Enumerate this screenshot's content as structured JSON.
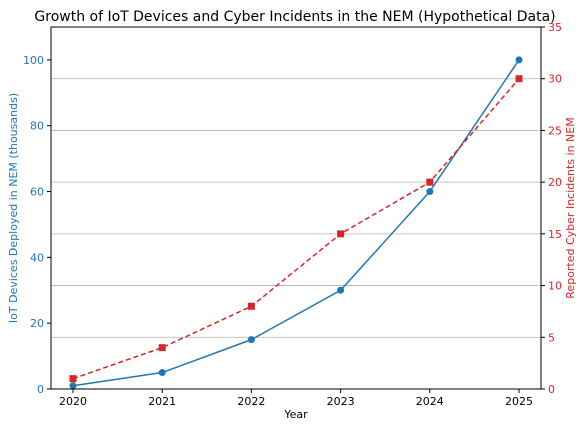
{
  "chart_data": {
    "type": "line",
    "title": "Growth of IoT Devices and Cyber Incidents in the NEM (Hypothetical Data)",
    "xlabel": "Year",
    "ylabel_left": "IoT Devices Deployed in NEM (thousands)",
    "ylabel_right": "Reported Cyber Incidents in NEM",
    "x": [
      "2020",
      "2021",
      "2022",
      "2023",
      "2024",
      "2025"
    ],
    "ylim_left": [
      0,
      110
    ],
    "ylim_right": [
      0,
      35
    ],
    "yticks_left": [
      "0",
      "20",
      "40",
      "60",
      "80",
      "100"
    ],
    "yticks_right": [
      "0",
      "5",
      "10",
      "15",
      "20",
      "25",
      "30",
      "35"
    ],
    "grid": "horizontal lines at right-axis ticks",
    "series": [
      {
        "axis": "left",
        "values": [
          1,
          5,
          15,
          30,
          60,
          100
        ],
        "color": "#1f77b4",
        "line_style": "solid",
        "marker": "circle"
      },
      {
        "axis": "right",
        "values": [
          1,
          4,
          8,
          15,
          20,
          30
        ],
        "color": "#d62728",
        "line_style": "dashed",
        "marker": "square"
      }
    ],
    "colors": {
      "left_axis": "#1f77b4",
      "right_axis": "#d62728",
      "grid": "#b0b0b0",
      "frame": "#000000"
    }
  }
}
